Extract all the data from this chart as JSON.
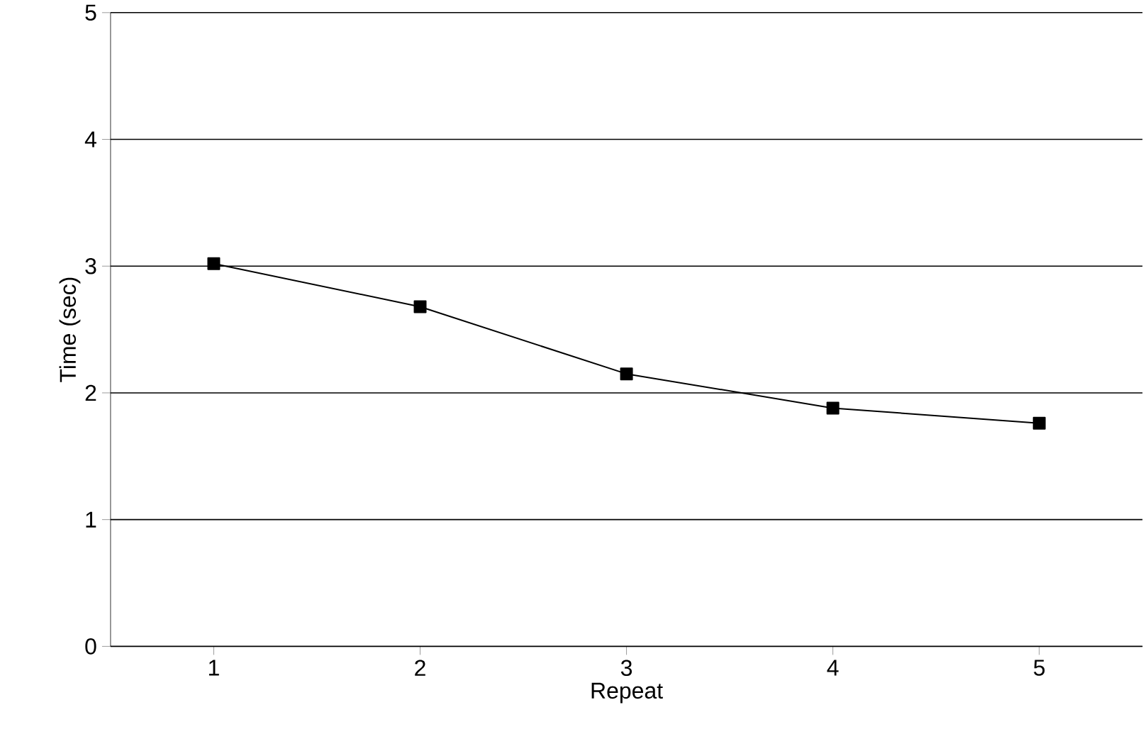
{
  "chart_data": {
    "type": "line",
    "xlabel": "Repeat",
    "ylabel": "Time (sec)",
    "x": [
      1,
      2,
      3,
      4,
      5
    ],
    "values": [
      3.02,
      2.68,
      2.15,
      1.88,
      1.76
    ],
    "color": "#000000",
    "marker": "square",
    "line_style": "solid",
    "xlim": [
      0.5,
      5.5
    ],
    "ylim": [
      0,
      5
    ],
    "xticks": [
      1,
      2,
      3,
      4,
      5
    ],
    "yticks": [
      0,
      1,
      2,
      3,
      4,
      5
    ],
    "grid": "y"
  }
}
